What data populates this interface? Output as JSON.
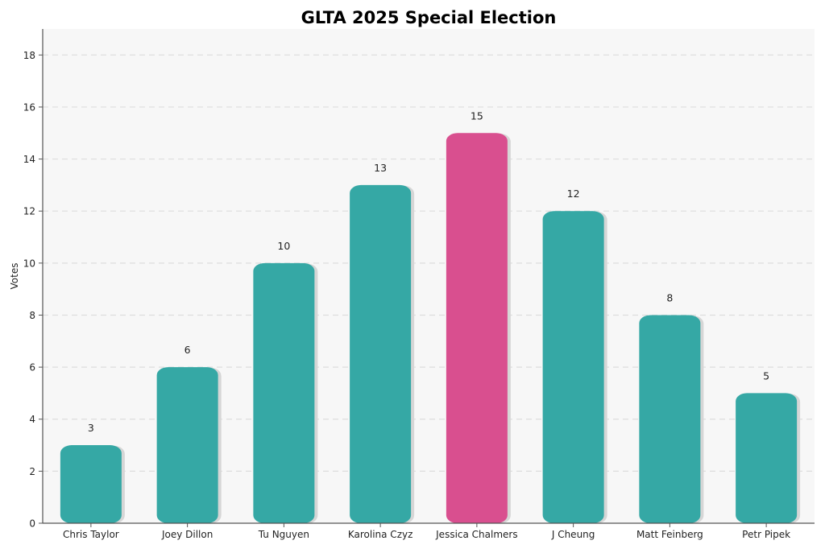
{
  "chart_data": {
    "type": "bar",
    "title": "GLTA 2025 Special Election",
    "xlabel": "",
    "ylabel": "Votes",
    "categories": [
      "Chris Taylor",
      "Joey Dillon",
      "Tu Nguyen",
      "Karolina Czyz",
      "Jessica Chalmers",
      "J Cheung",
      "Matt Feinberg",
      "Petr Pipek"
    ],
    "values": [
      3,
      6,
      10,
      13,
      15,
      12,
      8,
      5
    ],
    "data_labels": [
      "3",
      "6",
      "10",
      "13",
      "15",
      "12",
      "8",
      "5"
    ],
    "ylim": [
      0,
      19
    ],
    "yticks": [
      0,
      2,
      4,
      6,
      8,
      10,
      12,
      14,
      16,
      18
    ],
    "grid": "y-dashed",
    "highlight_index": 4,
    "colors": {
      "default": "#35a8a5",
      "highlight": "#d94f8f",
      "plot_bg": "#f7f7f7",
      "grid": "#dddddd",
      "axis": "#555555"
    }
  }
}
